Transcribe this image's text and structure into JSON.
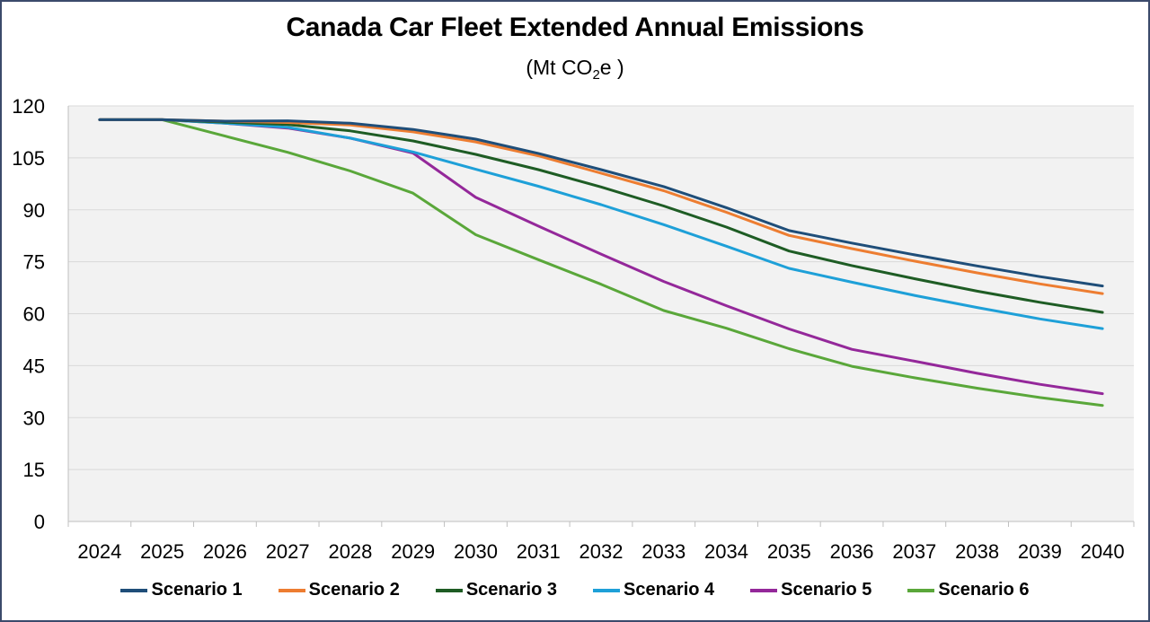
{
  "chart_data": {
    "type": "line",
    "title": "Canada Car Fleet Extended Annual Emissions",
    "subtitle": {
      "prefix": "(Mt CO",
      "sub": "2",
      "suffix": "e )"
    },
    "x": [
      "2024",
      "2025",
      "2026",
      "2027",
      "2028",
      "2029",
      "2030",
      "2031",
      "2032",
      "2033",
      "2034",
      "2035",
      "2036",
      "2037",
      "2038",
      "2039",
      "2040"
    ],
    "ylim": [
      0,
      120
    ],
    "yticks": [
      0,
      15,
      30,
      45,
      60,
      75,
      90,
      105,
      120
    ],
    "grid": true,
    "legend_position": "bottom",
    "series": [
      {
        "name": "Scenario 1",
        "color": "#1f4e79",
        "values": [
          116,
          116,
          115.6,
          115.7,
          115.0,
          113.2,
          110.4,
          106.3,
          101.6,
          96.7,
          90.6,
          84.0,
          80.4,
          77.0,
          73.8,
          70.7,
          68.0
        ]
      },
      {
        "name": "Scenario 2",
        "color": "#ed7d31",
        "values": [
          116,
          116,
          115.6,
          115.2,
          114.5,
          112.5,
          109.6,
          105.6,
          100.6,
          95.5,
          89.3,
          82.6,
          78.8,
          75.2,
          71.8,
          68.6,
          65.8
        ]
      },
      {
        "name": "Scenario 3",
        "color": "#1e5c24",
        "values": [
          116,
          116,
          115.3,
          114.6,
          112.8,
          109.9,
          106.0,
          101.6,
          96.6,
          91.1,
          85.0,
          78.1,
          73.9,
          70.1,
          66.5,
          63.3,
          60.4
        ]
      },
      {
        "name": "Scenario 4",
        "color": "#1ea0d8",
        "values": [
          116,
          116,
          115.0,
          113.8,
          110.7,
          106.7,
          101.7,
          96.8,
          91.5,
          85.7,
          79.5,
          73.1,
          69.1,
          65.3,
          61.8,
          58.5,
          55.7
        ]
      },
      {
        "name": "Scenario 5",
        "color": "#94289a",
        "values": [
          116,
          116,
          115.0,
          113.6,
          110.7,
          106.4,
          93.6,
          85.3,
          77.2,
          69.3,
          62.3,
          55.6,
          49.7,
          46.3,
          42.8,
          39.6,
          36.9
        ]
      },
      {
        "name": "Scenario 6",
        "color": "#5aa73a",
        "values": [
          116,
          116,
          111.3,
          106.6,
          101.2,
          94.8,
          82.8,
          75.6,
          68.5,
          60.9,
          55.8,
          49.9,
          44.8,
          41.5,
          38.5,
          35.8,
          33.5
        ]
      }
    ]
  }
}
